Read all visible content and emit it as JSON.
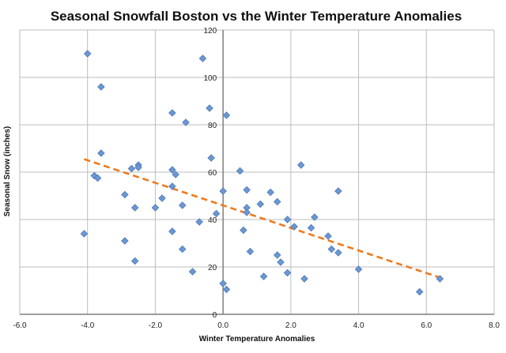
{
  "chart_data": {
    "type": "scatter",
    "title": "Seasonal Snowfall Boston vs the Winter Temperature Anomalies",
    "xlabel": "Winter Temperature Anomalies",
    "ylabel": "Seasonal Snow (inches)",
    "xlim": [
      -6.0,
      8.0
    ],
    "ylim": [
      0,
      120
    ],
    "x_ticks": [
      -6.0,
      -4.0,
      -2.0,
      0.0,
      2.0,
      4.0,
      6.0,
      8.0
    ],
    "x_tick_labels": [
      "-6.0",
      "-4.0",
      "-2.0",
      "0.0",
      "2.0",
      "4.0",
      "6.0",
      "8.0"
    ],
    "y_ticks": [
      0,
      20,
      40,
      60,
      80,
      100,
      120
    ],
    "y_tick_labels": [
      "0",
      "20",
      "40",
      "60",
      "80",
      "100",
      "120"
    ],
    "grid": true,
    "legend": "none",
    "colors": {
      "markers": "#6b97d3",
      "trendline": "#ef7a1e",
      "grid": "#bdbdbd"
    },
    "points": [
      {
        "x": -4.0,
        "y": 110
      },
      {
        "x": -3.6,
        "y": 96
      },
      {
        "x": -0.6,
        "y": 108
      },
      {
        "x": -0.4,
        "y": 87
      },
      {
        "x": 0.1,
        "y": 84
      },
      {
        "x": -1.5,
        "y": 85
      },
      {
        "x": -1.1,
        "y": 81
      },
      {
        "x": -0.35,
        "y": 66
      },
      {
        "x": -4.1,
        "y": 34
      },
      {
        "x": -3.6,
        "y": 68
      },
      {
        "x": -3.8,
        "y": 58.5
      },
      {
        "x": -3.7,
        "y": 57.5
      },
      {
        "x": -2.7,
        "y": 61.5
      },
      {
        "x": -2.5,
        "y": 63
      },
      {
        "x": -2.5,
        "y": 62
      },
      {
        "x": -2.9,
        "y": 50.5
      },
      {
        "x": -2.6,
        "y": 45
      },
      {
        "x": -2.9,
        "y": 31
      },
      {
        "x": -2.6,
        "y": 22.5
      },
      {
        "x": -1.5,
        "y": 61
      },
      {
        "x": -1.4,
        "y": 59
      },
      {
        "x": -1.5,
        "y": 54
      },
      {
        "x": -1.8,
        "y": 49
      },
      {
        "x": -2.0,
        "y": 45
      },
      {
        "x": -1.2,
        "y": 46
      },
      {
        "x": -1.5,
        "y": 35
      },
      {
        "x": -1.2,
        "y": 27.5
      },
      {
        "x": -0.7,
        "y": 39
      },
      {
        "x": -0.9,
        "y": 18
      },
      {
        "x": 0.0,
        "y": 52
      },
      {
        "x": -0.2,
        "y": 42.5
      },
      {
        "x": 0.5,
        "y": 60.5
      },
      {
        "x": 0.7,
        "y": 52.5
      },
      {
        "x": 0.7,
        "y": 45
      },
      {
        "x": 0.7,
        "y": 43
      },
      {
        "x": 0.6,
        "y": 35.5
      },
      {
        "x": 0.8,
        "y": 26.5
      },
      {
        "x": 0.0,
        "y": 13
      },
      {
        "x": 0.1,
        "y": 10.5
      },
      {
        "x": 1.1,
        "y": 46.5
      },
      {
        "x": 1.4,
        "y": 51.5
      },
      {
        "x": 1.6,
        "y": 47.5
      },
      {
        "x": 1.9,
        "y": 40
      },
      {
        "x": 2.1,
        "y": 37
      },
      {
        "x": 1.6,
        "y": 25
      },
      {
        "x": 1.7,
        "y": 22
      },
      {
        "x": 1.2,
        "y": 16
      },
      {
        "x": 1.9,
        "y": 17.5
      },
      {
        "x": 2.3,
        "y": 63
      },
      {
        "x": 2.7,
        "y": 41
      },
      {
        "x": 2.6,
        "y": 36.5
      },
      {
        "x": 3.1,
        "y": 33
      },
      {
        "x": 3.2,
        "y": 27.5
      },
      {
        "x": 3.4,
        "y": 26
      },
      {
        "x": 3.4,
        "y": 52
      },
      {
        "x": 2.4,
        "y": 15
      },
      {
        "x": 4.0,
        "y": 19
      },
      {
        "x": 5.8,
        "y": 9.5
      },
      {
        "x": 6.4,
        "y": 15
      }
    ],
    "trendline": {
      "style": "dashed",
      "x": [
        -4.1,
        6.4
      ],
      "y": [
        65.5,
        15.5
      ]
    }
  }
}
